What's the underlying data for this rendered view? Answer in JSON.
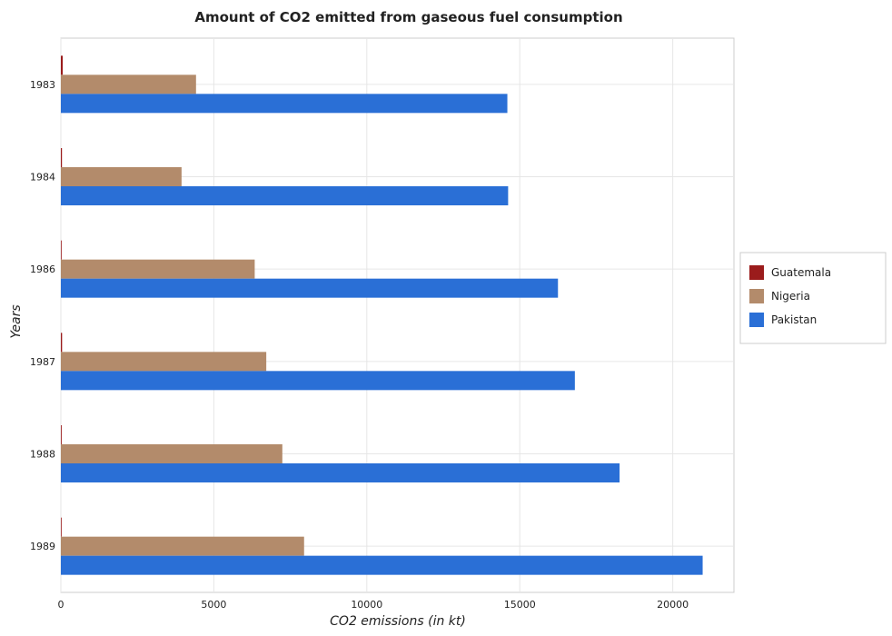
{
  "chart_data": {
    "type": "bar",
    "orientation": "horizontal",
    "title": "Amount of CO2 emitted from gaseous fuel consumption",
    "xlabel": "CO2 emissions (in kt)",
    "ylabel": "Years",
    "xlim": [
      0,
      22000
    ],
    "xticks": [
      0,
      5000,
      10000,
      15000,
      20000
    ],
    "xtick_labels": [
      "0",
      "5000",
      "10000",
      "15000",
      "20000"
    ],
    "categories": [
      "1983",
      "1984",
      "1986",
      "1987",
      "1988",
      "1989"
    ],
    "series": [
      {
        "name": "Guatemala",
        "color": "#9b1c1c",
        "values": [
          62,
          36,
          22,
          40,
          26,
          15
        ]
      },
      {
        "name": "Nigeria",
        "color": "#b38b6b",
        "values": [
          4418,
          3945,
          6336,
          6714,
          7239,
          7950
        ]
      },
      {
        "name": "Pakistan",
        "color": "#2a6fd6",
        "values": [
          14594,
          14619,
          16248,
          16800,
          18262,
          20977
        ]
      }
    ],
    "grid": true,
    "legend_position": "right"
  }
}
